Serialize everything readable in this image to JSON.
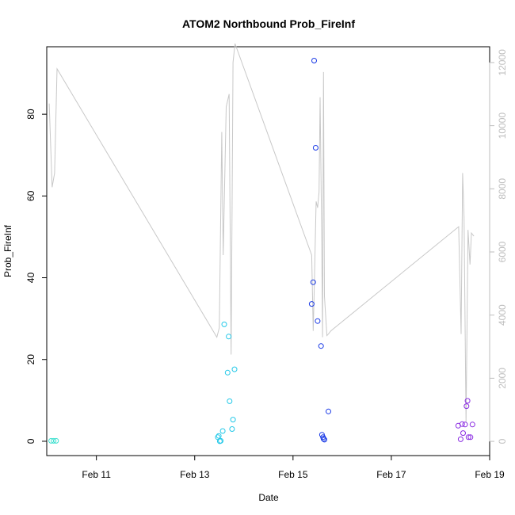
{
  "chart_data": {
    "type": "scatter",
    "title": "ATOM2 Northbound Prob_FireInf",
    "xlabel": "Date",
    "ylabel": "Prob_FireInf",
    "x_ticks": [
      "Feb 11",
      "Feb 13",
      "Feb 15",
      "Feb 17",
      "Feb 19"
    ],
    "x_tick_values": [
      11,
      13,
      15,
      17,
      19
    ],
    "xlim": [
      9.99,
      19.0
    ],
    "y_ticks": [
      0,
      20,
      40,
      60,
      80
    ],
    "ylim": [
      -3.5,
      96.5
    ],
    "y2_ticks": [
      0,
      2000,
      4000,
      6000,
      8000,
      10000,
      12000
    ],
    "y2lim": [
      -450,
      12500
    ],
    "grid": false,
    "legend": "none",
    "colors": {
      "axis": "#000000",
      "right_axis": "#bebebe",
      "line": "#c8c8c8"
    },
    "series": [
      {
        "type": "scatter",
        "axis": "left",
        "color": "#40e0d0",
        "x": [
          10.08,
          10.13,
          10.18
        ],
        "y": [
          0.1,
          0.1,
          0.1
        ]
      },
      {
        "type": "scatter",
        "axis": "left",
        "color": "#22c8e8",
        "x": [
          13.47,
          13.49,
          13.51,
          13.53,
          13.57,
          13.6,
          13.67,
          13.69,
          13.71,
          13.76,
          13.78,
          13.81
        ],
        "y": [
          1.0,
          1.3,
          0.0,
          0.1,
          2.5,
          28.6,
          16.8,
          25.6,
          9.8,
          3.0,
          5.3,
          17.6
        ]
      },
      {
        "type": "scatter",
        "axis": "left",
        "color": "#1a3ae6",
        "x": [
          15.38,
          15.41,
          15.43,
          15.46,
          15.5,
          15.57,
          15.59,
          15.61,
          15.62,
          15.64,
          15.72
        ],
        "y": [
          33.6,
          38.9,
          93.1,
          71.8,
          29.4,
          23.3,
          1.6,
          1.0,
          0.6,
          0.4,
          7.3
        ]
      },
      {
        "type": "scatter",
        "axis": "left",
        "color": "#8a2be2",
        "x": [
          18.36,
          18.41,
          18.44,
          18.46,
          18.5,
          18.53,
          18.55,
          18.57,
          18.61,
          18.65
        ],
        "y": [
          3.8,
          0.5,
          4.2,
          2.0,
          4.1,
          8.6,
          9.9,
          1.0,
          1.0,
          4.1
        ]
      },
      {
        "type": "line",
        "axis": "right",
        "color": "#c8c8c8",
        "x": [
          10.04,
          10.1,
          10.15,
          10.2,
          13.45,
          13.5,
          13.55,
          13.58,
          13.64,
          13.7,
          13.74,
          13.78,
          13.82,
          15.38,
          15.41,
          15.43,
          15.47,
          15.5,
          15.53,
          15.55,
          15.58,
          15.6,
          15.62,
          15.64,
          15.69,
          15.72,
          15.77,
          18.37,
          18.42,
          18.45,
          18.48,
          18.52,
          18.56,
          18.6,
          18.63,
          18.68
        ],
        "y": [
          10700,
          8050,
          8500,
          11800,
          3300,
          3600,
          9800,
          5900,
          10600,
          11000,
          2750,
          12000,
          12600,
          5900,
          3500,
          4700,
          7600,
          7400,
          7900,
          10900,
          7000,
          3300,
          11700,
          4600,
          3350,
          3400,
          3500,
          6800,
          3400,
          8500,
          7100,
          600,
          6700,
          5600,
          6600,
          6500
        ]
      }
    ]
  }
}
